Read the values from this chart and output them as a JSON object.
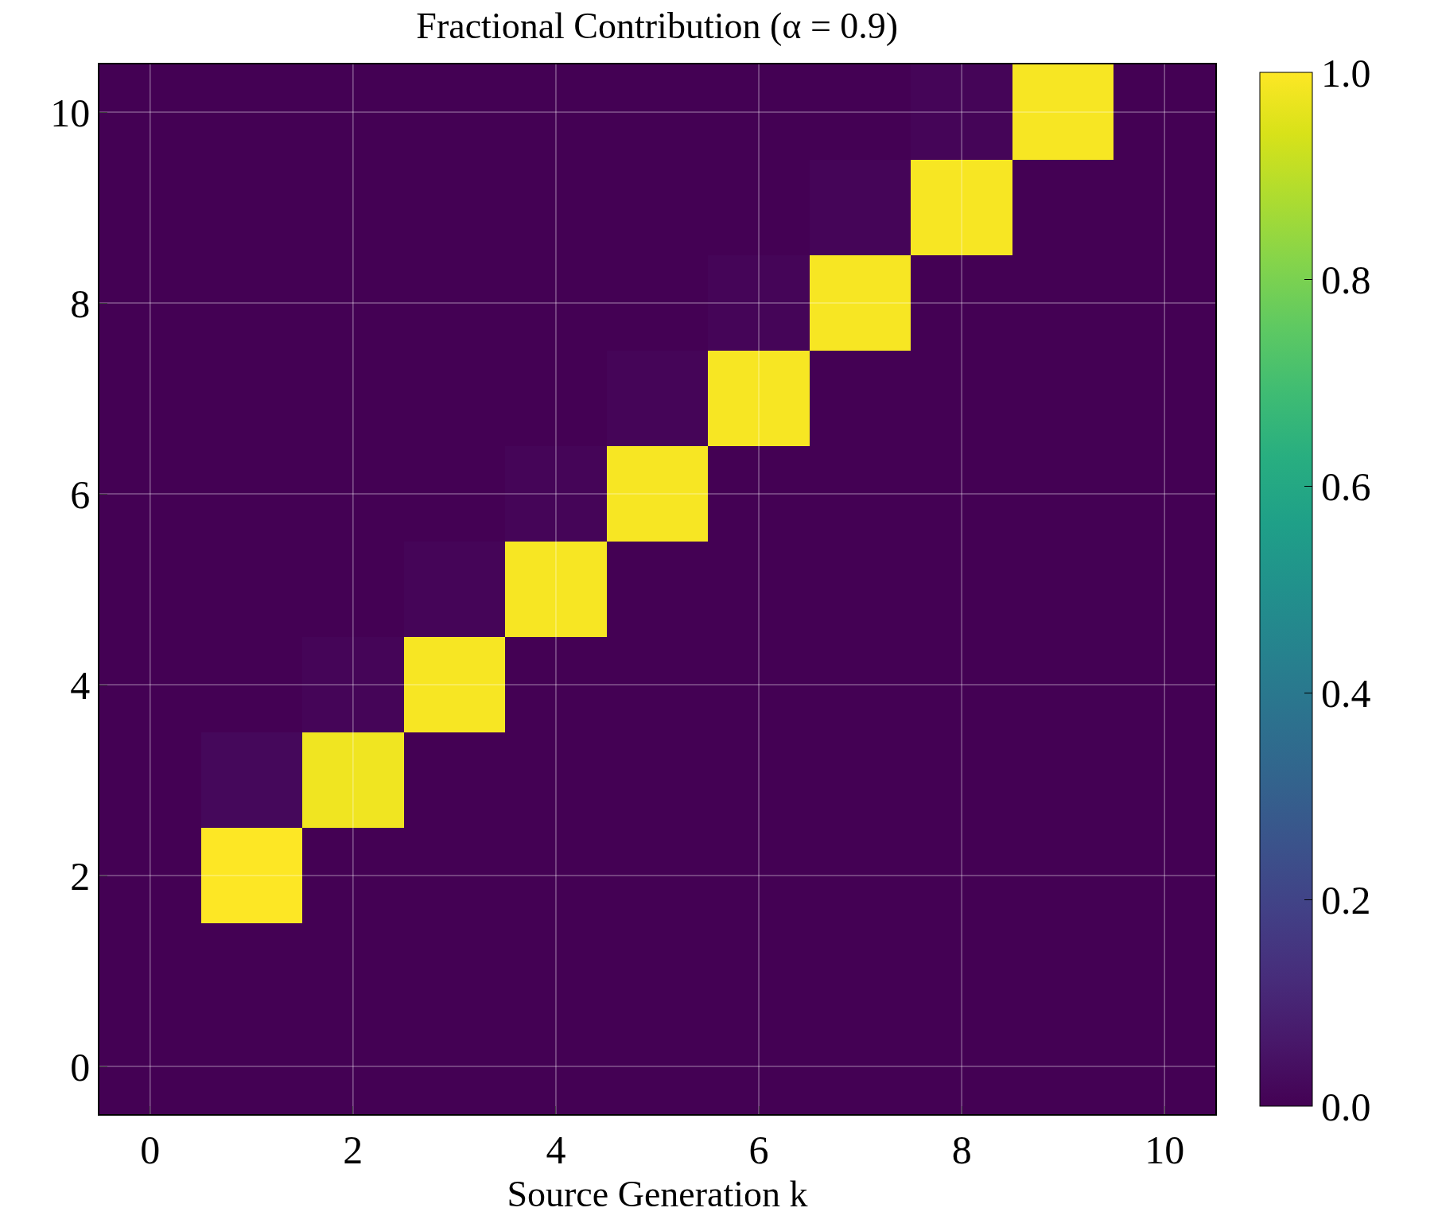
{
  "chart_data": {
    "type": "heatmap",
    "title": "Fractional Contribution (α = 0.9)",
    "xlabel": "Source Generation k",
    "categories": [
      "0",
      null,
      "2",
      null,
      "4",
      null,
      "6",
      null,
      "8",
      null,
      "10"
    ],
    "y_categories": [
      "10",
      null,
      "8",
      null,
      "6",
      null,
      "4",
      null,
      "2",
      null,
      "0"
    ],
    "cells": [
      [
        0,
        0,
        0,
        0,
        0,
        0,
        0,
        0,
        0.01,
        0.99,
        0
      ],
      [
        0,
        0,
        0,
        0,
        0,
        0,
        0,
        0.01,
        0.99,
        0,
        0
      ],
      [
        0,
        0,
        0,
        0,
        0,
        0,
        0.01,
        0.99,
        0,
        0,
        0
      ],
      [
        0,
        0,
        0,
        0,
        0,
        0.01,
        0.99,
        0,
        0,
        0,
        0
      ],
      [
        0,
        0,
        0,
        0,
        0.01,
        0.99,
        0,
        0,
        0,
        0,
        0
      ],
      [
        0,
        0,
        0,
        0.01,
        0.99,
        0,
        0,
        0,
        0,
        0,
        0
      ],
      [
        0,
        0,
        0.01,
        0.99,
        0,
        0,
        0,
        0,
        0,
        0,
        0
      ],
      [
        0,
        0.02,
        0.98,
        0,
        0,
        0,
        0,
        0,
        0,
        0,
        0
      ],
      [
        0,
        1,
        0,
        0,
        0,
        0,
        0,
        0,
        0,
        0,
        0
      ],
      [
        0,
        0,
        0,
        0,
        0,
        0,
        0,
        0,
        0,
        0,
        0
      ],
      [
        0,
        0,
        0,
        0,
        0,
        0,
        0,
        0,
        0,
        0,
        0
      ]
    ],
    "clim": [
      0,
      1
    ],
    "cticks": [
      {
        "value": 0,
        "label": "0.0"
      },
      {
        "value": 0.2,
        "label": "0.2"
      },
      {
        "value": 0.4,
        "label": "0.4"
      },
      {
        "value": 0.6,
        "label": "0.6"
      },
      {
        "value": 0.8,
        "label": "0.8"
      },
      {
        "value": 1,
        "label": "1.0"
      }
    ],
    "grid": true
  }
}
